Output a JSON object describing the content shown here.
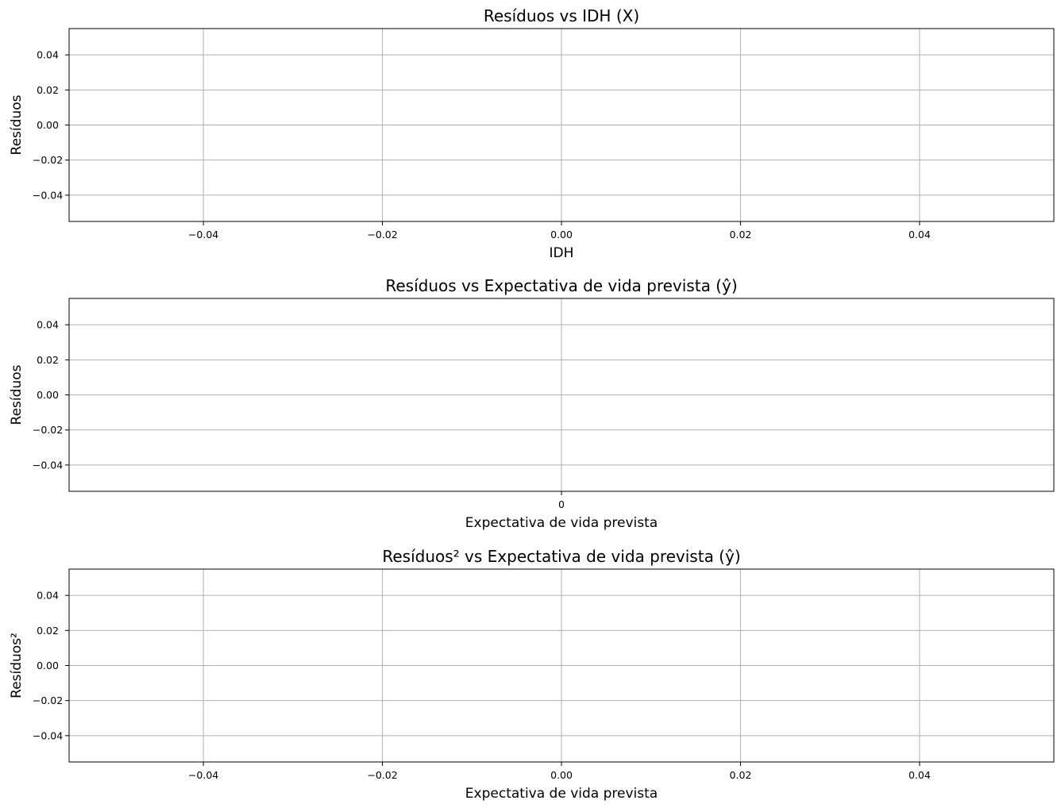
{
  "chart_data": [
    {
      "type": "scatter",
      "title": "Resíduos vs IDH (X)",
      "xlabel": "IDH",
      "ylabel": "Resíduos",
      "xlim": [
        -0.055,
        0.055
      ],
      "ylim": [
        -0.055,
        0.055
      ],
      "xticks": [
        -0.04,
        -0.02,
        0.0,
        0.02,
        0.04
      ],
      "xtick_labels": [
        "−0.04",
        "−0.02",
        "0.00",
        "0.02",
        "0.04"
      ],
      "yticks": [
        0.04,
        0.02,
        0.0,
        -0.02,
        -0.04
      ],
      "ytick_labels": [
        "0.04",
        "0.02",
        "0.00",
        "−0.02",
        "−0.04"
      ],
      "grid": true,
      "points": []
    },
    {
      "type": "scatter",
      "title": "Resíduos vs Expectativa de vida prevista (ŷ)",
      "xlabel": "Expectativa de vida prevista",
      "ylabel": "Resíduos",
      "xlim": [
        -1,
        1
      ],
      "ylim": [
        -0.055,
        0.055
      ],
      "xticks": [
        0
      ],
      "xtick_labels": [
        "0"
      ],
      "yticks": [
        0.04,
        0.02,
        0.0,
        -0.02,
        -0.04
      ],
      "ytick_labels": [
        "0.04",
        "0.02",
        "0.00",
        "−0.02",
        "−0.04"
      ],
      "grid": true,
      "points": []
    },
    {
      "type": "scatter",
      "title": "Resíduos² vs Expectativa de vida prevista (ŷ)",
      "xlabel": "Expectativa de vida prevista",
      "ylabel": "Resíduos²",
      "xlim": [
        -0.055,
        0.055
      ],
      "ylim": [
        -0.055,
        0.055
      ],
      "xticks": [
        -0.04,
        -0.02,
        0.0,
        0.02,
        0.04
      ],
      "xtick_labels": [
        "−0.04",
        "−0.02",
        "0.00",
        "0.02",
        "0.04"
      ],
      "yticks": [
        0.04,
        0.02,
        0.0,
        -0.02,
        -0.04
      ],
      "ytick_labels": [
        "0.04",
        "0.02",
        "0.00",
        "−0.02",
        "−0.04"
      ],
      "grid": true,
      "points": []
    }
  ],
  "colors": {
    "grid": "#b0b0b0",
    "axes": "#000000",
    "background": "#ffffff"
  }
}
